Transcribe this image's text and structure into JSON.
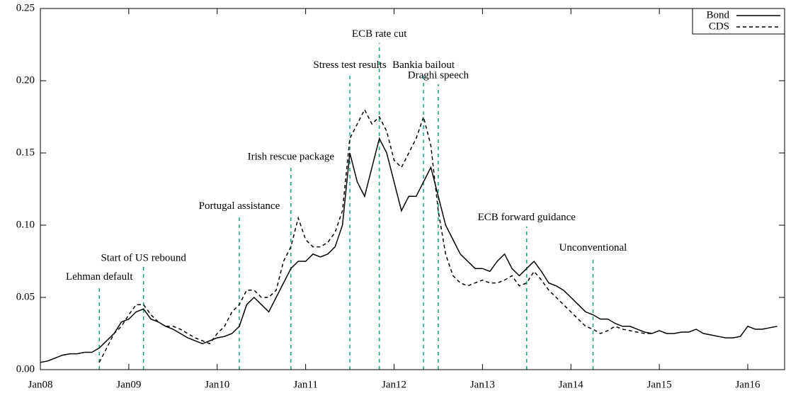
{
  "chart_data": {
    "type": "line",
    "x": [
      "2008-01",
      "2008-02",
      "2008-03",
      "2008-04",
      "2008-05",
      "2008-06",
      "2008-07",
      "2008-08",
      "2008-09",
      "2008-10",
      "2008-11",
      "2008-12",
      "2009-01",
      "2009-02",
      "2009-03",
      "2009-04",
      "2009-05",
      "2009-06",
      "2009-07",
      "2009-08",
      "2009-09",
      "2009-10",
      "2009-11",
      "2009-12",
      "2010-01",
      "2010-02",
      "2010-03",
      "2010-04",
      "2010-05",
      "2010-06",
      "2010-07",
      "2010-08",
      "2010-09",
      "2010-10",
      "2010-11",
      "2010-12",
      "2011-01",
      "2011-02",
      "2011-03",
      "2011-04",
      "2011-05",
      "2011-06",
      "2011-07",
      "2011-08",
      "2011-09",
      "2011-10",
      "2011-11",
      "2011-12",
      "2012-01",
      "2012-02",
      "2012-03",
      "2012-04",
      "2012-05",
      "2012-06",
      "2012-07",
      "2012-08",
      "2012-09",
      "2012-10",
      "2012-11",
      "2012-12",
      "2013-01",
      "2013-02",
      "2013-03",
      "2013-04",
      "2013-05",
      "2013-06",
      "2013-07",
      "2013-08",
      "2013-09",
      "2013-10",
      "2013-11",
      "2013-12",
      "2014-01",
      "2014-02",
      "2014-03",
      "2014-04",
      "2014-05",
      "2014-06",
      "2014-07",
      "2014-08",
      "2014-09",
      "2014-10",
      "2014-11",
      "2014-12",
      "2015-01",
      "2015-02",
      "2015-03",
      "2015-04",
      "2015-05",
      "2015-06",
      "2015-07",
      "2015-08",
      "2015-09",
      "2015-10",
      "2015-11",
      "2015-12",
      "2016-01",
      "2016-02",
      "2016-03",
      "2016-04",
      "2016-05"
    ],
    "series": [
      {
        "name": "Bond",
        "color": "#000000",
        "dash": false,
        "values": [
          0.005,
          0.006,
          0.008,
          0.01,
          0.011,
          0.011,
          0.012,
          0.012,
          0.015,
          0.02,
          0.025,
          0.033,
          0.035,
          0.04,
          0.042,
          0.035,
          0.033,
          0.03,
          0.028,
          0.025,
          0.022,
          0.02,
          0.018,
          0.02,
          0.022,
          0.023,
          0.025,
          0.03,
          0.045,
          0.05,
          0.045,
          0.04,
          0.05,
          0.06,
          0.07,
          0.075,
          0.075,
          0.08,
          0.078,
          0.08,
          0.085,
          0.1,
          0.15,
          0.13,
          0.12,
          0.14,
          0.16,
          0.15,
          0.13,
          0.11,
          0.12,
          0.12,
          0.13,
          0.14,
          0.12,
          0.1,
          0.09,
          0.08,
          0.075,
          0.07,
          0.07,
          0.068,
          0.075,
          0.08,
          0.07,
          0.065,
          0.07,
          0.075,
          0.068,
          0.06,
          0.058,
          0.055,
          0.05,
          0.045,
          0.04,
          0.038,
          0.035,
          0.035,
          0.032,
          0.03,
          0.03,
          0.028,
          0.026,
          0.025,
          0.027,
          0.025,
          0.025,
          0.026,
          0.026,
          0.028,
          0.025,
          0.024,
          0.023,
          0.022,
          0.022,
          0.023,
          0.03,
          0.028,
          0.028,
          0.029,
          0.03
        ]
      },
      {
        "name": "CDS",
        "color": "#000000",
        "dash": true,
        "values": [
          null,
          null,
          null,
          null,
          null,
          null,
          null,
          null,
          0.005,
          0.015,
          0.025,
          0.03,
          0.038,
          0.045,
          0.045,
          0.038,
          0.033,
          0.03,
          0.03,
          0.028,
          0.025,
          0.022,
          0.02,
          0.018,
          0.025,
          0.03,
          0.04,
          0.045,
          0.055,
          0.055,
          0.05,
          0.05,
          0.055,
          0.075,
          0.085,
          0.105,
          0.09,
          0.085,
          0.085,
          0.088,
          0.095,
          0.11,
          0.16,
          0.17,
          0.18,
          0.17,
          0.175,
          0.165,
          0.145,
          0.14,
          0.15,
          0.16,
          0.175,
          0.155,
          0.11,
          0.08,
          0.065,
          0.06,
          0.058,
          0.06,
          0.062,
          0.06,
          0.06,
          0.062,
          0.065,
          0.058,
          0.06,
          0.068,
          0.062,
          0.055,
          0.05,
          0.045,
          0.04,
          0.035,
          0.03,
          0.028,
          0.025,
          0.027,
          0.03,
          0.028,
          0.027,
          0.026,
          0.025,
          0.025,
          null,
          null,
          null,
          null,
          null,
          null,
          null,
          null,
          null,
          null,
          null,
          null,
          null,
          null,
          null,
          null,
          null
        ]
      }
    ],
    "xlim": [
      "2008-01",
      "2016-06"
    ],
    "xticks": [
      {
        "value": "2008-01",
        "label": "Jan08"
      },
      {
        "value": "2009-01",
        "label": "Jan09"
      },
      {
        "value": "2010-01",
        "label": "Jan10"
      },
      {
        "value": "2011-01",
        "label": "Jan11"
      },
      {
        "value": "2012-01",
        "label": "Jan12"
      },
      {
        "value": "2013-01",
        "label": "Jan13"
      },
      {
        "value": "2014-01",
        "label": "Jan14"
      },
      {
        "value": "2015-01",
        "label": "Jan15"
      },
      {
        "value": "2016-01",
        "label": "Jan16"
      }
    ],
    "ylim": [
      0,
      0.25
    ],
    "yticks": [
      {
        "value": 0,
        "label": "0.00"
      },
      {
        "value": 0.05,
        "label": "0.05"
      },
      {
        "value": 0.1,
        "label": "0.10"
      },
      {
        "value": 0.15,
        "label": "0.15"
      },
      {
        "value": 0.2,
        "label": "0.20"
      },
      {
        "value": 0.25,
        "label": "0.25"
      }
    ],
    "legend": "top-right",
    "annotation_color": "#1a9e8a",
    "annotations": [
      {
        "x": "2008-09",
        "y": 0.064,
        "text": "Lehman default"
      },
      {
        "x": "2009-03",
        "y": 0.077,
        "text": "Start of US rebound"
      },
      {
        "x": "2010-04",
        "y": 0.113,
        "text": "Portugal assistance"
      },
      {
        "x": "2010-11",
        "y": 0.147,
        "text": "Irish rescue package"
      },
      {
        "x": "2011-07",
        "y": 0.2105,
        "text": "Stress test results"
      },
      {
        "x": "2011-11",
        "y": 0.232,
        "text": "ECB rate cut"
      },
      {
        "x": "2012-05",
        "y": 0.2105,
        "text": "Bankia bailout"
      },
      {
        "x": "2012-07",
        "y": 0.2035,
        "text": "Draghi speech"
      },
      {
        "x": "2013-07",
        "y": 0.105,
        "text": "ECB forward guidance"
      },
      {
        "x": "2014-04",
        "y": 0.084,
        "text": "Unconventional"
      }
    ]
  }
}
